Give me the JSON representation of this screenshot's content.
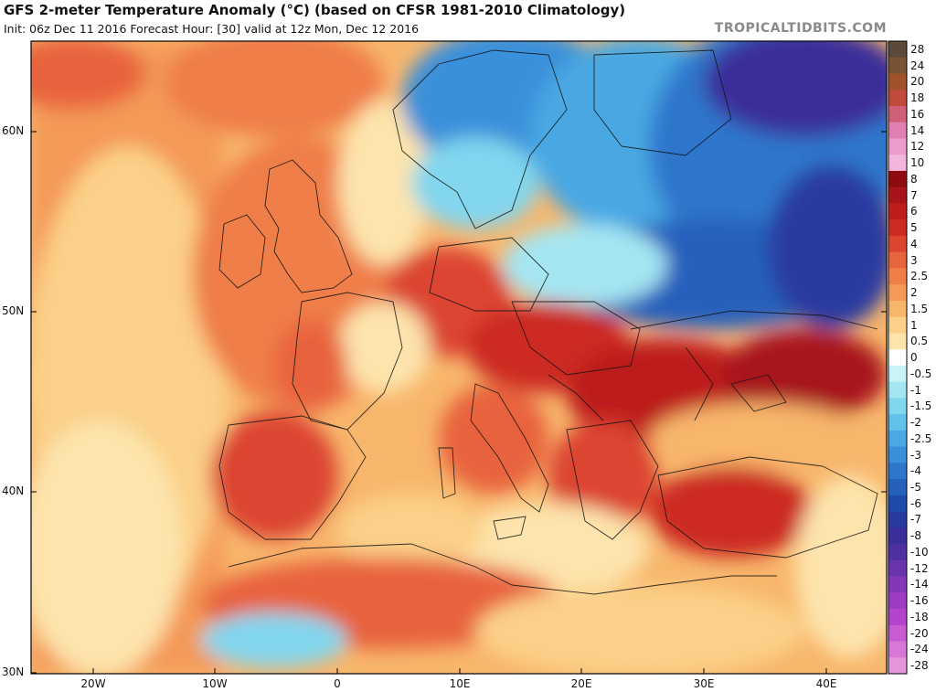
{
  "header": {
    "title": "GFS 2-meter Temperature Anomaly (°C) (based on CFSR 1981-2010 Climatology)",
    "subtitle": "Init: 06z Dec 11 2016   Forecast Hour: [30]   valid at 12z Mon, Dec 12 2016",
    "brand": "TROPICALTIDBITS.COM"
  },
  "axes": {
    "latitudes": [
      "60N",
      "50N",
      "40N",
      "30N"
    ],
    "longitudes": [
      "20W",
      "10W",
      "0",
      "10E",
      "20E",
      "30E",
      "40E"
    ]
  },
  "colorbar": {
    "labels": [
      "28",
      "24",
      "20",
      "18",
      "16",
      "14",
      "12",
      "10",
      "8",
      "7",
      "6",
      "5",
      "4",
      "3",
      "2.5",
      "2",
      "1.5",
      "1",
      "0.5",
      "0",
      "-0.5",
      "-1",
      "-1.5",
      "-2",
      "-2.5",
      "-3",
      "-4",
      "-5",
      "-6",
      "-7",
      "-8",
      "-10",
      "-12",
      "-14",
      "-16",
      "-18",
      "-20",
      "-24",
      "-28"
    ],
    "colors": [
      "#5b4a3a",
      "#7a5236",
      "#a0522d",
      "#c04a3c",
      "#d0607a",
      "#e080b0",
      "#ec9ccc",
      "#f2b6dc",
      "#8e0c10",
      "#a8141a",
      "#bd1d1d",
      "#cc2b22",
      "#dc4530",
      "#e8643c",
      "#ef7e48",
      "#f49a58",
      "#f8b66c",
      "#fbd088",
      "#fde4ac",
      "#ffffff",
      "#c8f4f8",
      "#a4e6f2",
      "#82d6ee",
      "#62c2ea",
      "#4aa8e2",
      "#3a90da",
      "#2e76cc",
      "#2560bc",
      "#1e4aac",
      "#2a3aa0",
      "#3a2e9a",
      "#5030a0",
      "#6a34ac",
      "#8438b8",
      "#9e3cc2",
      "#b444cc",
      "#c85ad2",
      "#d878d6",
      "#e496da"
    ]
  }
}
